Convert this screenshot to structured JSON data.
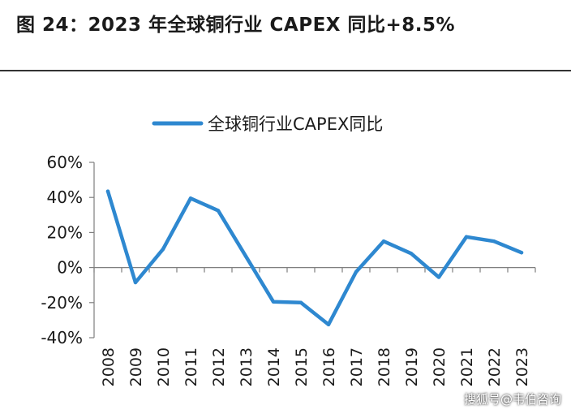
{
  "title": "图 24：2023 年全球铜行业 CAPEX 同比+8.5%",
  "watermark": "搜狐号@韦伯咨询",
  "colors": {
    "line": "#2E88D0",
    "axis": "#7F7F7F",
    "text": "#1a1a1a"
  },
  "chart_data": {
    "type": "line",
    "legend_position": "top-center",
    "grid": false,
    "ylim": [
      -40,
      60
    ],
    "yticks": [
      "-40%",
      "-20%",
      "0%",
      "20%",
      "40%",
      "60%"
    ],
    "yticks_values": [
      -40,
      -20,
      0,
      20,
      40,
      60
    ],
    "categories": [
      "2008",
      "2009",
      "2010",
      "2011",
      "2012",
      "2013",
      "2014",
      "2015",
      "2016",
      "2017",
      "2018",
      "2019",
      "2020",
      "2021",
      "2022",
      "2023"
    ],
    "series": [
      {
        "name": "全球铜行业CAPEX同比",
        "values": [
          43.5,
          -8.5,
          10.5,
          39.5,
          32.5,
          6.5,
          -19.5,
          -20,
          -32.5,
          -2.5,
          15,
          8,
          -5.5,
          17.5,
          15,
          8.5
        ]
      }
    ]
  }
}
